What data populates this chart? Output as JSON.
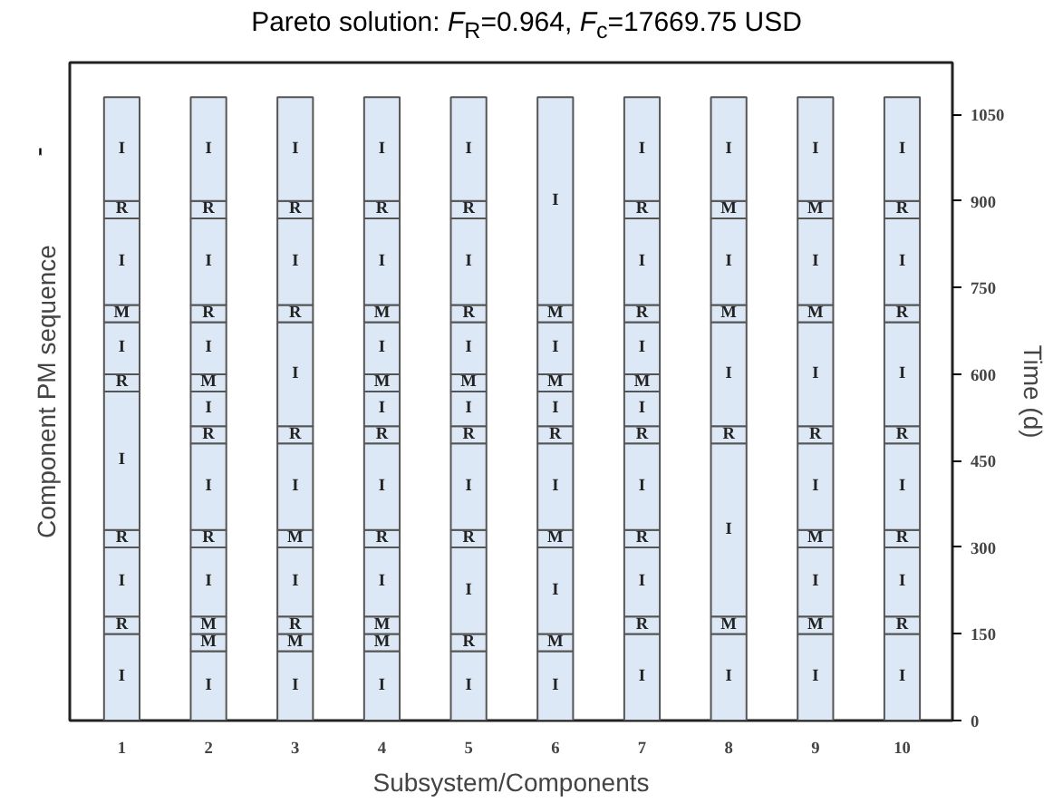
{
  "chart_data": {
    "type": "bar",
    "stacked": true,
    "title": "Pareto solution: F$_{R}$=0.964, F$_{c}$=17669.75 USD",
    "xlabel": "Subsystem/Components",
    "ylabel": "Component PM sequence",
    "y2label": "Time (d)",
    "categories": [
      "1",
      "2",
      "3",
      "4",
      "5",
      "6",
      "7",
      "8",
      "9",
      "10"
    ],
    "ylim": [
      0,
      1140
    ],
    "yticks": [
      0,
      150,
      300,
      450,
      600,
      750,
      900,
      1050
    ],
    "grid": false,
    "series": [
      {
        "color": "#dde8f6",
        "values": [
          150,
          120,
          120,
          120,
          120,
          120,
          150,
          150,
          150,
          150
        ],
        "value_labels": [
          "I",
          "I",
          "I",
          "I",
          "I",
          "I",
          "I",
          "I",
          "I",
          "I"
        ]
      },
      {
        "color": "#dde8f6",
        "values": [
          30,
          30,
          30,
          30,
          30,
          30,
          30,
          30,
          30,
          30
        ],
        "value_labels": [
          "R",
          "M",
          "M",
          "M",
          "R",
          "M",
          "R",
          "M",
          "M",
          "R"
        ]
      },
      {
        "color": "#dde8f6",
        "values": [
          120,
          30,
          30,
          30,
          150,
          150,
          120,
          300,
          120,
          120
        ],
        "value_labels": [
          "I",
          "M",
          "R",
          "M",
          "I",
          "I",
          "I",
          "I",
          "I",
          "I"
        ]
      },
      {
        "color": "#dde8f6",
        "values": [
          30,
          120,
          120,
          120,
          30,
          30,
          30,
          30,
          30,
          30
        ],
        "value_labels": [
          "R",
          "I",
          "I",
          "I",
          "R",
          "M",
          "R",
          "R",
          "M",
          "R"
        ]
      },
      {
        "color": "#dde8f6",
        "values": [
          240,
          30,
          30,
          30,
          150,
          150,
          150,
          180,
          150,
          150
        ],
        "value_labels": [
          "I",
          "R",
          "M",
          "R",
          "I",
          "I",
          "I",
          "I",
          "I",
          "I"
        ]
      },
      {
        "color": "#dde8f6",
        "values": [
          30,
          150,
          150,
          150,
          30,
          30,
          30,
          30,
          30,
          30
        ],
        "value_labels": [
          "R",
          "I",
          "I",
          "I",
          "R",
          "R",
          "R",
          "M",
          "R",
          "R"
        ]
      },
      {
        "color": "#dde8f6",
        "values": [
          90,
          30,
          30,
          30,
          60,
          60,
          60,
          150,
          180,
          180
        ],
        "value_labels": [
          "I",
          "R",
          "R",
          "R",
          "I",
          "I",
          "I",
          "I",
          "I",
          "I"
        ]
      },
      {
        "color": "#dde8f6",
        "values": [
          30,
          60,
          180,
          60,
          30,
          30,
          30,
          30,
          30,
          30
        ],
        "value_labels": [
          "M",
          "I",
          "I",
          "I",
          "M",
          "M",
          "M",
          "M",
          "M",
          "R"
        ]
      },
      {
        "color": "#dde8f6",
        "values": [
          150,
          30,
          30,
          30,
          90,
          90,
          90,
          180,
          150,
          150
        ],
        "value_labels": [
          "I",
          "M",
          "R",
          "M",
          "I",
          "I",
          "I",
          "I",
          "I",
          "I"
        ]
      },
      {
        "color": "#dde8f6",
        "values": [
          30,
          90,
          150,
          90,
          30,
          30,
          30,
          null,
          30,
          30
        ],
        "value_labels": [
          "R",
          "I",
          "I",
          "I",
          "R",
          "M",
          "R",
          null,
          "M",
          "R"
        ]
      },
      {
        "color": "#dde8f6",
        "values": [
          180,
          30,
          30,
          30,
          150,
          360,
          150,
          null,
          180,
          180
        ],
        "value_labels": [
          "I",
          "R",
          "R",
          "M",
          "I",
          "I",
          "I",
          null,
          "I",
          "I"
        ]
      },
      {
        "color": "#dde8f6",
        "values": [
          null,
          150,
          180,
          150,
          30,
          null,
          30,
          null,
          null,
          null
        ],
        "value_labels": [
          null,
          "I",
          "I",
          "I",
          "R",
          null,
          "R",
          null,
          null,
          null
        ]
      },
      {
        "color": "#dde8f6",
        "values": [
          null,
          30,
          null,
          30,
          180,
          null,
          180,
          null,
          null,
          null
        ],
        "value_labels": [
          null,
          "R",
          null,
          "R",
          "I",
          null,
          "I",
          null,
          null,
          null
        ]
      },
      {
        "color": "#dde8f6",
        "values": [
          null,
          180,
          null,
          180,
          null,
          null,
          null,
          null,
          null,
          null
        ],
        "value_labels": [
          null,
          "I",
          null,
          "I",
          null,
          null,
          null,
          null,
          null,
          null
        ]
      }
    ]
  }
}
